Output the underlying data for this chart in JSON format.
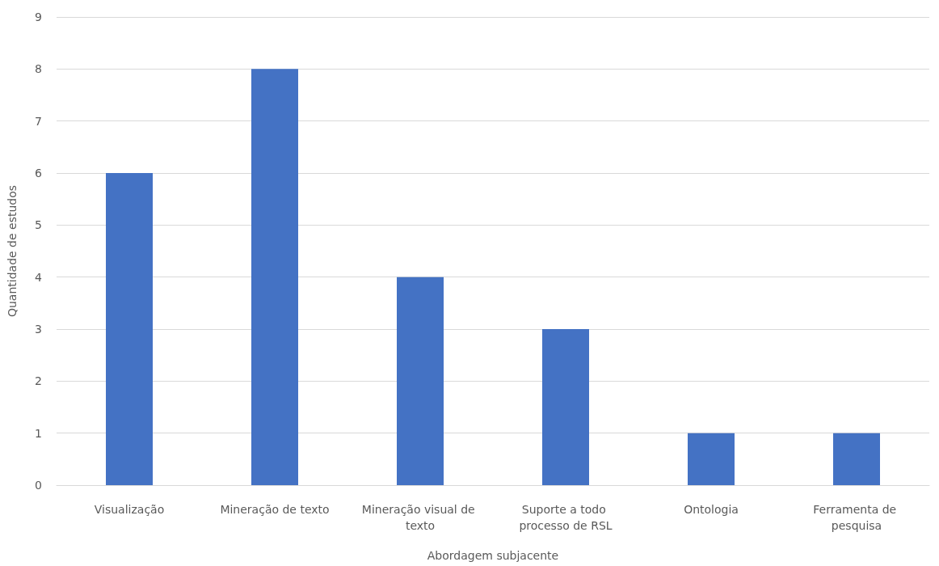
{
  "chart_data": {
    "type": "bar",
    "xlabel": "Abordagem subjacente",
    "ylabel": "Quantidade de estudos",
    "categories": [
      "Visualização",
      "Mineração de texto",
      "Mineração visual de texto",
      "Suporte a todo processo de RSL",
      "Ontologia",
      "Ferramenta de pesquisa"
    ],
    "values": [
      6,
      8,
      4,
      3,
      1,
      1
    ],
    "color": "#4472c4",
    "ylim": [
      0,
      9
    ],
    "yticks": [
      0,
      1,
      2,
      3,
      4,
      5,
      6,
      7,
      8,
      9
    ],
    "grid": "y"
  }
}
